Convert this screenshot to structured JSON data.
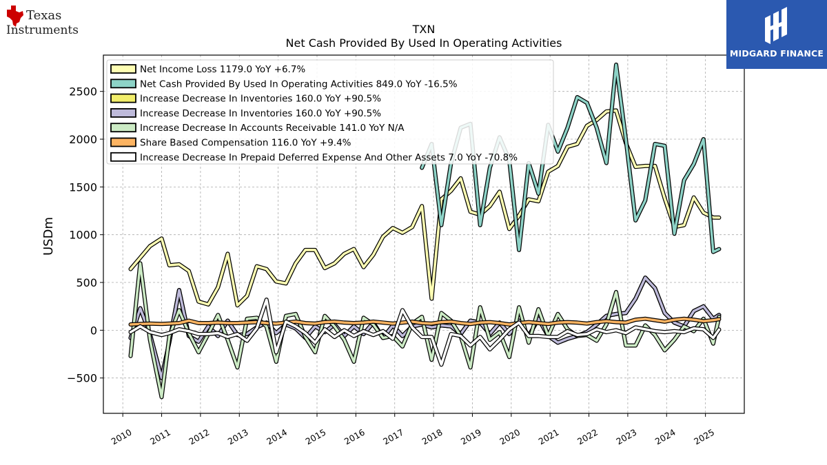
{
  "brand": {
    "ti_line1": "Texas",
    "ti_line2": "Instruments",
    "partner_name": "MIDGARD FINANCE",
    "partner_color": "#2b59b0"
  },
  "chart_data": {
    "type": "line",
    "title": "TXN",
    "subtitle": "Net Cash Provided By Used In Operating Activities",
    "ylabel": "USDm",
    "xlabel": "",
    "xlim": [
      2009.5,
      2026.0
    ],
    "ylim": [
      -870,
      2880
    ],
    "yticks": [
      -500,
      0,
      500,
      1000,
      1500,
      2000,
      2500
    ],
    "ytick_labels": [
      "−500",
      "0",
      "500",
      "1000",
      "1500",
      "2000",
      "2500"
    ],
    "xticks": [
      2010,
      2011,
      2012,
      2013,
      2014,
      2015,
      2016,
      2017,
      2018,
      2019,
      2020,
      2021,
      2022,
      2023,
      2024,
      2025
    ],
    "xtick_labels": [
      "2010",
      "2011",
      "2012",
      "2013",
      "2014",
      "2015",
      "2016",
      "2017",
      "2018",
      "2019",
      "2020",
      "2021",
      "2022",
      "2023",
      "2024",
      "2025"
    ],
    "grid": true,
    "legend_position": "top-left",
    "series": [
      {
        "name": "Net Income Loss",
        "legend": "Net Income Loss  1179.0 YoY +6.7%",
        "color": "#ffffb3",
        "x": [
          2010.2,
          2010.45,
          2010.7,
          2011.0,
          2011.2,
          2011.45,
          2011.7,
          2011.95,
          2012.2,
          2012.45,
          2012.7,
          2012.95,
          2013.2,
          2013.45,
          2013.7,
          2013.95,
          2014.2,
          2014.45,
          2014.7,
          2014.95,
          2015.2,
          2015.45,
          2015.7,
          2015.95,
          2016.2,
          2016.45,
          2016.7,
          2016.95,
          2017.2,
          2017.45,
          2017.7,
          2017.95,
          2018.2,
          2018.45,
          2018.7,
          2018.95,
          2019.2,
          2019.45,
          2019.7,
          2019.95,
          2020.2,
          2020.45,
          2020.7,
          2020.95,
          2021.2,
          2021.45,
          2021.7,
          2021.95,
          2022.2,
          2022.45,
          2022.7,
          2022.95,
          2023.2,
          2023.45,
          2023.7,
          2023.95,
          2024.2,
          2024.45,
          2024.7,
          2024.95,
          2025.2,
          2025.35
        ],
        "y": [
          640,
          760,
          880,
          960,
          680,
          690,
          620,
          300,
          270,
          450,
          800,
          260,
          360,
          670,
          640,
          510,
          490,
          700,
          840,
          840,
          650,
          700,
          800,
          850,
          660,
          790,
          980,
          1070,
          1020,
          1080,
          1300,
          330,
          1370,
          1460,
          1590,
          1240,
          1210,
          1300,
          1450,
          1060,
          1200,
          1370,
          1350,
          1660,
          1720,
          1920,
          1950,
          2140,
          2200,
          2290,
          2300,
          1960,
          1710,
          1720,
          1720,
          1380,
          1080,
          1100,
          1390,
          1230,
          1180,
          1179
        ]
      },
      {
        "name": "Net Cash Provided By Used In Operating Activities",
        "legend": "Net Cash Provided By Used In Operating Activities  849.0 YoY -16.5%",
        "color": "#8dd3c7",
        "x": [
          2017.7,
          2017.95,
          2018.2,
          2018.45,
          2018.7,
          2018.95,
          2019.2,
          2019.45,
          2019.7,
          2019.95,
          2020.2,
          2020.45,
          2020.7,
          2020.95,
          2021.2,
          2021.45,
          2021.7,
          2021.95,
          2022.2,
          2022.45,
          2022.7,
          2022.95,
          2023.2,
          2023.45,
          2023.7,
          2023.95,
          2024.2,
          2024.45,
          2024.7,
          2024.95,
          2025.2,
          2025.35
        ],
        "y": [
          1700,
          1950,
          1100,
          1750,
          2120,
          2160,
          1100,
          1700,
          2020,
          1780,
          840,
          1750,
          1430,
          2150,
          1870,
          2120,
          2440,
          2380,
          2120,
          1750,
          2780,
          2000,
          1150,
          1360,
          1950,
          1930,
          1010,
          1570,
          1740,
          2000,
          820,
          849
        ]
      },
      {
        "name": "Increase Decrease In Inventories",
        "legend": "Increase Decrease In Inventories  160.0 YoY +90.5%",
        "color": "#f2ee6b",
        "x": [
          2010.2,
          2010.45,
          2010.7,
          2011.0,
          2011.2,
          2011.45,
          2011.7,
          2011.95,
          2012.2,
          2012.45,
          2012.7,
          2012.95,
          2013.2,
          2013.45,
          2013.7,
          2013.95,
          2014.2,
          2014.45,
          2014.7,
          2014.95,
          2015.2,
          2015.45,
          2015.7,
          2015.95,
          2016.2,
          2016.45,
          2016.7,
          2016.95,
          2017.2,
          2017.45,
          2017.7,
          2017.95,
          2018.2,
          2018.45,
          2018.7,
          2018.95,
          2019.2,
          2019.45,
          2019.7,
          2019.95,
          2020.2,
          2020.45,
          2020.7,
          2020.95,
          2021.2,
          2021.45,
          2021.7,
          2021.95,
          2022.2,
          2022.45,
          2022.7,
          2022.95,
          2023.2,
          2023.45,
          2023.7,
          2023.95,
          2024.2,
          2024.45,
          2024.7,
          2024.95,
          2025.2,
          2025.35
        ],
        "y": [
          -80,
          230,
          -40,
          -500,
          -120,
          420,
          -60,
          -120,
          40,
          -60,
          100,
          -50,
          -40,
          30,
          80,
          -30,
          60,
          20,
          -80,
          40,
          -20,
          60,
          -60,
          40,
          -40,
          80,
          -80,
          50,
          -60,
          40,
          60,
          30,
          50,
          40,
          -40,
          100,
          80,
          -40,
          80,
          -40,
          100,
          -60,
          120,
          -60,
          -130,
          -90,
          -60,
          -20,
          60,
          150,
          170,
          180,
          330,
          550,
          440,
          180,
          80,
          40,
          200,
          250,
          120,
          160
        ]
      },
      {
        "name": "Increase Decrease In Inventories",
        "legend": "Increase Decrease In Inventories  160.0 YoY +90.5%",
        "color": "#bebada",
        "x": [
          2010.2,
          2010.45,
          2010.7,
          2011.0,
          2011.2,
          2011.45,
          2011.7,
          2011.95,
          2012.2,
          2012.45,
          2012.7,
          2012.95,
          2013.2,
          2013.45,
          2013.7,
          2013.95,
          2014.2,
          2014.45,
          2014.7,
          2014.95,
          2015.2,
          2015.45,
          2015.7,
          2015.95,
          2016.2,
          2016.45,
          2016.7,
          2016.95,
          2017.2,
          2017.45,
          2017.7,
          2017.95,
          2018.2,
          2018.45,
          2018.7,
          2018.95,
          2019.2,
          2019.45,
          2019.7,
          2019.95,
          2020.2,
          2020.45,
          2020.7,
          2020.95,
          2021.2,
          2021.45,
          2021.7,
          2021.95,
          2022.2,
          2022.45,
          2022.7,
          2022.95,
          2023.2,
          2023.45,
          2023.7,
          2023.95,
          2024.2,
          2024.45,
          2024.7,
          2024.95,
          2025.2,
          2025.35
        ],
        "y": [
          -80,
          230,
          -40,
          -500,
          -120,
          420,
          -60,
          -120,
          40,
          -60,
          100,
          -50,
          -40,
          30,
          80,
          -30,
          60,
          20,
          -80,
          40,
          -20,
          60,
          -60,
          40,
          -40,
          80,
          -80,
          50,
          -60,
          40,
          60,
          30,
          50,
          40,
          -40,
          100,
          80,
          -40,
          80,
          -40,
          100,
          -60,
          120,
          -60,
          -130,
          -90,
          -60,
          -20,
          60,
          150,
          170,
          180,
          330,
          550,
          440,
          180,
          80,
          40,
          200,
          250,
          120,
          160
        ]
      },
      {
        "name": "Increase Decrease In Accounts Receivable",
        "legend": "Increase Decrease In Accounts Receivable  141.0 YoY N/A",
        "color": "#ccebc5",
        "x": [
          2010.2,
          2010.45,
          2010.7,
          2011.0,
          2011.2,
          2011.45,
          2011.7,
          2011.95,
          2012.2,
          2012.45,
          2012.7,
          2012.95,
          2013.2,
          2013.45,
          2013.7,
          2013.95,
          2014.2,
          2014.45,
          2014.7,
          2014.95,
          2015.2,
          2015.45,
          2015.7,
          2015.95,
          2016.2,
          2016.45,
          2016.7,
          2016.95,
          2017.2,
          2017.45,
          2017.7,
          2017.95,
          2018.2,
          2018.45,
          2018.7,
          2018.95,
          2019.2,
          2019.45,
          2019.7,
          2019.95,
          2020.2,
          2020.45,
          2020.7,
          2020.95,
          2021.2,
          2021.45,
          2021.7,
          2021.95,
          2022.2,
          2022.45,
          2022.7,
          2022.95,
          2023.2,
          2023.45,
          2023.7,
          2023.95,
          2024.2,
          2024.45,
          2024.7,
          2024.95,
          2025.2,
          2025.35
        ],
        "y": [
          -270,
          700,
          -100,
          -700,
          -60,
          210,
          -30,
          -230,
          -40,
          160,
          -100,
          -390,
          120,
          130,
          40,
          -330,
          150,
          170,
          -70,
          -230,
          150,
          40,
          -100,
          -330,
          130,
          60,
          -80,
          -60,
          -170,
          70,
          140,
          -310,
          180,
          100,
          -60,
          -390,
          240,
          -100,
          -20,
          -280,
          240,
          -130,
          220,
          -60,
          170,
          10,
          -60,
          -50,
          -110,
          60,
          400,
          -160,
          -160,
          50,
          -50,
          -210,
          -100,
          40,
          -10,
          120,
          -140,
          141
        ]
      },
      {
        "name": "Share Based Compensation",
        "legend": "Share Based Compensation  116.0 YoY +9.4%",
        "color": "#fdb462",
        "x": [
          2010.2,
          2010.45,
          2010.7,
          2011.0,
          2011.2,
          2011.45,
          2011.7,
          2011.95,
          2012.2,
          2012.45,
          2012.7,
          2012.95,
          2013.2,
          2013.45,
          2013.7,
          2013.95,
          2014.2,
          2014.45,
          2014.7,
          2014.95,
          2015.2,
          2015.45,
          2015.7,
          2015.95,
          2016.2,
          2016.45,
          2016.7,
          2016.95,
          2017.2,
          2017.45,
          2017.7,
          2017.95,
          2018.2,
          2018.45,
          2018.7,
          2018.95,
          2019.2,
          2019.45,
          2019.7,
          2019.95,
          2020.2,
          2020.45,
          2020.7,
          2020.95,
          2021.2,
          2021.45,
          2021.7,
          2021.95,
          2022.2,
          2022.45,
          2022.7,
          2022.95,
          2023.2,
          2023.45,
          2023.7,
          2023.95,
          2024.2,
          2024.45,
          2024.7,
          2024.95,
          2025.2,
          2025.35
        ],
        "y": [
          60,
          65,
          70,
          65,
          70,
          75,
          100,
          75,
          75,
          80,
          75,
          75,
          80,
          85,
          75,
          70,
          80,
          90,
          75,
          70,
          85,
          90,
          80,
          75,
          80,
          90,
          80,
          70,
          80,
          90,
          75,
          70,
          85,
          90,
          75,
          65,
          80,
          85,
          75,
          60,
          75,
          85,
          75,
          65,
          80,
          85,
          80,
          70,
          85,
          95,
          85,
          80,
          110,
          120,
          105,
          90,
          110,
          120,
          110,
          95,
          105,
          116
        ]
      },
      {
        "name": "Increase Decrease In Prepaid Deferred Expense And Other Assets",
        "legend": "Increase Decrease In Prepaid Deferred Expense And Other Assets  7.0 YoY -70.8%",
        "color": "#ffffff",
        "x": [
          2010.2,
          2010.45,
          2010.7,
          2011.0,
          2011.2,
          2011.45,
          2011.7,
          2011.95,
          2012.2,
          2012.45,
          2012.7,
          2012.95,
          2013.2,
          2013.45,
          2013.7,
          2013.95,
          2014.2,
          2014.45,
          2014.7,
          2014.95,
          2015.2,
          2015.45,
          2015.7,
          2015.95,
          2016.2,
          2016.45,
          2016.7,
          2016.95,
          2017.2,
          2017.45,
          2017.7,
          2017.95,
          2018.2,
          2018.45,
          2018.7,
          2018.95,
          2019.2,
          2019.45,
          2019.7,
          2019.95,
          2020.2,
          2020.45,
          2020.7,
          2020.95,
          2021.2,
          2021.45,
          2021.7,
          2021.95,
          2022.2,
          2022.45,
          2022.7,
          2022.95,
          2023.2,
          2023.45,
          2023.7,
          2023.95,
          2024.2,
          2024.45,
          2024.7,
          2024.95,
          2025.2,
          2025.35
        ],
        "y": [
          -20,
          40,
          -20,
          -50,
          -30,
          10,
          -10,
          -40,
          -40,
          -30,
          -70,
          -40,
          -110,
          20,
          320,
          -230,
          90,
          40,
          -30,
          -130,
          10,
          -70,
          0,
          -60,
          -10,
          -50,
          -10,
          -90,
          210,
          30,
          -70,
          -70,
          -360,
          -40,
          -60,
          -160,
          -70,
          -200,
          -100,
          10,
          80,
          -60,
          -60,
          -70,
          -70,
          -10,
          -50,
          -40,
          10,
          -20,
          0,
          -30,
          30,
          10,
          -10,
          -20,
          -10,
          -20,
          20,
          10,
          -80,
          7
        ]
      }
    ]
  }
}
